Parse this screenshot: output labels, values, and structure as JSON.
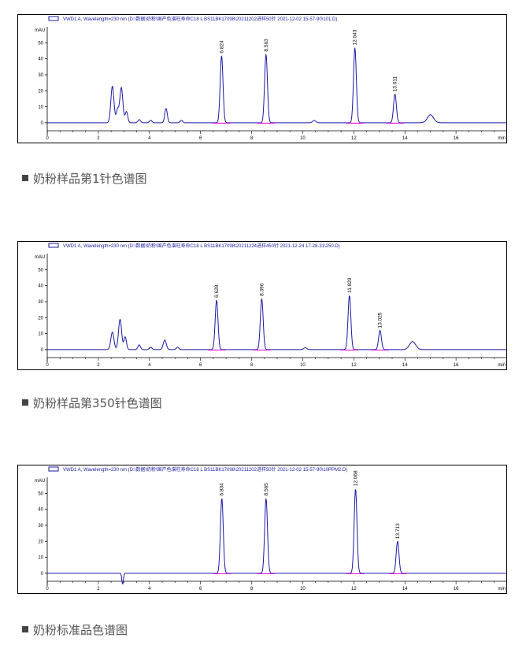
{
  "colors": {
    "trace": "#1a1aa6",
    "baseline": "#e000e0",
    "axis": "#000000",
    "frame": "#000000"
  },
  "legend_icon": "blue-line-swatch",
  "bullet_icon": "square-bullet",
  "chart_data": [
    {
      "type": "line",
      "header": "VWD1 A, Wavelength=230 nm (D:\\数据\\奶粉\\国产色谱柱寿命C18 L BS11BK17098\\20211202进样50针 2021-12-02 15-57-90\\101.D)",
      "ylabel": "mAU",
      "xunit": "min",
      "xlim": [
        0,
        18
      ],
      "ylim": [
        -5,
        63
      ],
      "yticks": [
        0,
        10,
        20,
        30,
        40,
        50
      ],
      "xticks": [
        0,
        2,
        4,
        6,
        8,
        10,
        12,
        14,
        16
      ],
      "peaks": [
        {
          "rt": 6.824,
          "label": "6.824",
          "height": 42
        },
        {
          "rt": 8.563,
          "label": "8.563",
          "height": 43
        },
        {
          "rt": 12.043,
          "label": "12.043",
          "height": 47
        },
        {
          "rt": 13.611,
          "label": "13.611",
          "height": 18
        }
      ],
      "caption": "奶粉样品第1针色谱图"
    },
    {
      "type": "line",
      "header": "VWD1 A, Wavelength=230 nm (D:\\数据\\奶粉\\国产色谱柱寿命C18 L BS11BK17098\\20211224进样450针 2021-12-24 17-28-31\\250.D)",
      "ylabel": "mAU",
      "xunit": "min",
      "xlim": [
        0,
        18
      ],
      "ylim": [
        -5,
        63
      ],
      "yticks": [
        0,
        10,
        20,
        30,
        40,
        50
      ],
      "xticks": [
        0,
        2,
        4,
        6,
        8,
        10,
        12,
        14,
        16
      ],
      "peaks": [
        {
          "rt": 6.628,
          "label": "6.628",
          "height": 31
        },
        {
          "rt": 8.396,
          "label": "8.396",
          "height": 32
        },
        {
          "rt": 11.829,
          "label": "11.829",
          "height": 34
        },
        {
          "rt": 13.025,
          "label": "13.025",
          "height": 12
        }
      ],
      "caption": "奶粉样品第350针色谱图"
    },
    {
      "type": "line",
      "header": "VWD1 A, Wavelength=230 nm (D:\\数据\\奶粉\\国产色谱柱寿命C18 L BS11BK17098\\20211202进样50针 2021-12-02 15-57-90\\10PPM2.D)",
      "ylabel": "mAU",
      "xunit": "min",
      "xlim": [
        0,
        18
      ],
      "ylim": [
        -5,
        63
      ],
      "yticks": [
        0,
        10,
        20,
        30,
        40,
        50
      ],
      "xticks": [
        0,
        2,
        4,
        6,
        8,
        10,
        12,
        14,
        16
      ],
      "peaks": [
        {
          "rt": 6.834,
          "label": "6.834",
          "height": 47
        },
        {
          "rt": 8.565,
          "label": "8.565",
          "height": 47
        },
        {
          "rt": 12.068,
          "label": "12.068",
          "height": 53
        },
        {
          "rt": 13.713,
          "label": "13.713",
          "height": 20
        }
      ],
      "caption": "奶粉标准品色谱图"
    }
  ]
}
